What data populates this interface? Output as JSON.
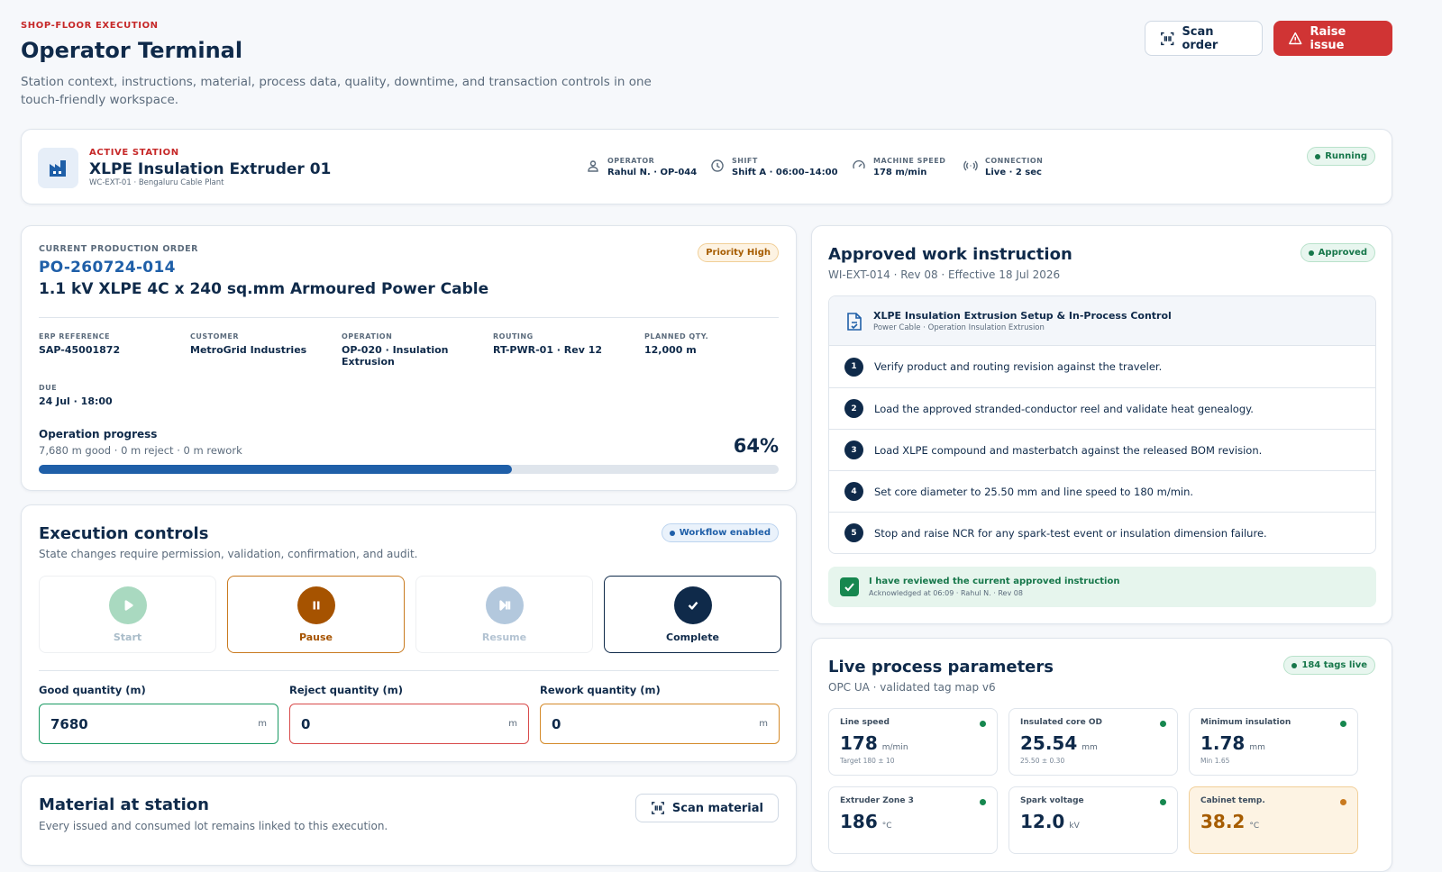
{
  "header": {
    "eyebrow": "SHOP-FLOOR EXECUTION",
    "title": "Operator Terminal",
    "subtitle": "Station context, instructions, material, process data, quality, downtime, and transaction controls in one touch-friendly workspace.",
    "actions": [
      "Scan order",
      "Raise issue"
    ]
  },
  "station": {
    "eyebrow": "ACTIVE STATION",
    "name": "XLPE Insulation Extruder 01",
    "sub": "WC-EXT-01 · Bengaluru Cable Plant",
    "status": "Running",
    "meta": [
      {
        "label": "OPERATOR",
        "value": "Rahul N. · OP-044"
      },
      {
        "label": "SHIFT",
        "value": "Shift A · 06:00–14:00"
      },
      {
        "label": "MACHINE SPEED",
        "value": "178 m/min"
      },
      {
        "label": "CONNECTION",
        "value": "Live · 2 sec"
      }
    ]
  },
  "order": {
    "eyebrow": "CURRENT PRODUCTION ORDER",
    "id": "PO-260724-014",
    "product": "1.1 kV XLPE 4C x 240 sq.mm Armoured Power Cable",
    "badge": "Priority High",
    "fields": [
      {
        "label": "ERP REFERENCE",
        "value": "SAP-45001872"
      },
      {
        "label": "CUSTOMER",
        "value": "MetroGrid Industries"
      },
      {
        "label": "OPERATION",
        "value": "OP-020 · Insulation Extrusion"
      },
      {
        "label": "ROUTING",
        "value": "RT-PWR-01 · Rev 12"
      },
      {
        "label": "PLANNED QTY.",
        "value": "12,000 m"
      },
      {
        "label": "DUE",
        "value": "24 Jul · 18:00"
      }
    ],
    "progress": {
      "title": "Operation progress",
      "sub": "7,680 m good · 0 m reject · 0 m rework",
      "percent": 64,
      "percent_label": "64%"
    }
  },
  "controls": {
    "title": "Execution controls",
    "badge": "Workflow enabled",
    "sub": "State changes require permission, validation, confirmation, and audit.",
    "buttons": [
      "Start",
      "Pause",
      "Resume",
      "Complete"
    ],
    "quantities": [
      {
        "label": "Good quantity (m)",
        "value": "7680",
        "unit": "m"
      },
      {
        "label": "Reject quantity (m)",
        "value": "0",
        "unit": "m"
      },
      {
        "label": "Rework quantity (m)",
        "value": "0",
        "unit": "m"
      }
    ]
  },
  "material": {
    "title": "Material at station",
    "action": "Scan material",
    "sub": "Every issued and consumed lot remains linked to this execution."
  },
  "instruction": {
    "title": "Approved work instruction",
    "badge": "Approved",
    "sub": "WI-EXT-014 · Rev 08 · Effective 18 Jul 2026",
    "doc_title": "XLPE Insulation Extrusion Setup & In-Process Control",
    "doc_sub": "Power Cable · Operation Insulation Extrusion",
    "steps": [
      {
        "n": "1",
        "text": "Verify product and routing revision against the traveler."
      },
      {
        "n": "2",
        "text": "Load the approved stranded-conductor reel and validate heat genealogy."
      },
      {
        "n": "3",
        "text": "Load XLPE compound and masterbatch against the released BOM revision."
      },
      {
        "n": "4",
        "text": "Set core diameter to 25.50 mm and line speed to 180 m/min."
      },
      {
        "n": "5",
        "text": "Stop and raise NCR for any spark-test event or insulation dimension failure."
      }
    ],
    "ack": "I have reviewed the current approved instruction",
    "ack_sub": "Acknowledged at 06:09 · Rahul N. · Rev 08"
  },
  "parameters": {
    "title": "Live process parameters",
    "badge": "184 tags live",
    "sub": "OPC UA · validated tag map v6",
    "tiles": [
      {
        "label": "Line speed",
        "value": "178",
        "unit": "m/min",
        "note": "Target 180 ± 10"
      },
      {
        "label": "Insulated core OD",
        "value": "25.54",
        "unit": "mm",
        "note": "25.50 ± 0.30"
      },
      {
        "label": "Minimum insulation",
        "value": "1.78",
        "unit": "mm",
        "note": "Min 1.65"
      },
      {
        "label": "Extruder Zone 3",
        "value": "186",
        "unit": "°C"
      },
      {
        "label": "Spark voltage",
        "value": "12.0",
        "unit": "kV"
      },
      {
        "label": "Cabinet temp.",
        "value": "38.2",
        "unit": "°C"
      }
    ]
  }
}
